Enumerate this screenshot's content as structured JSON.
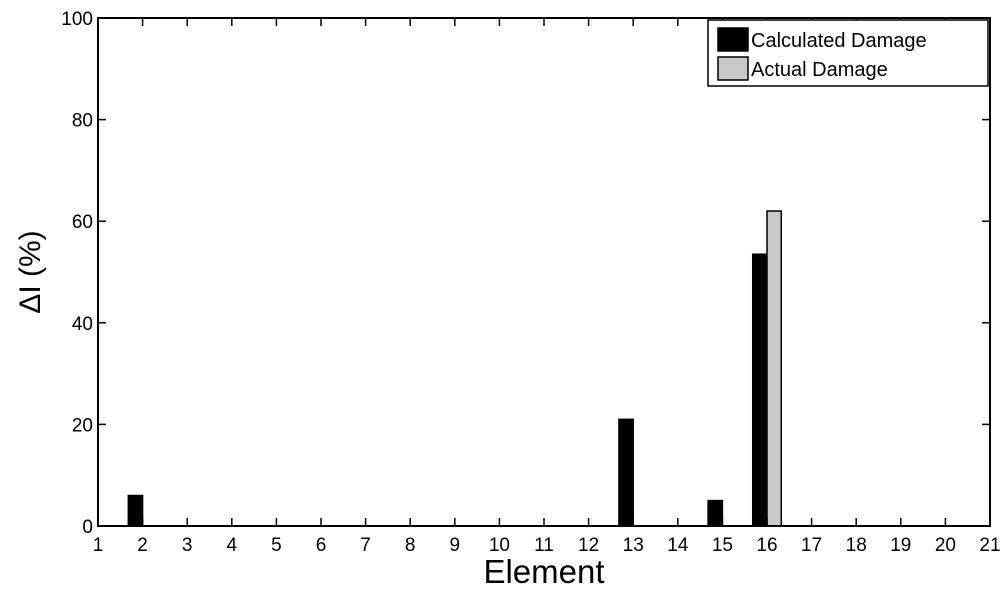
{
  "chart_data": {
    "type": "bar",
    "xlabel": "Element",
    "ylabel": "ΔI (%)",
    "xlim": [
      1,
      21
    ],
    "ylim": [
      0,
      100
    ],
    "x_ticks": [
      "1",
      "2",
      "3",
      "4",
      "5",
      "6",
      "7",
      "8",
      "9",
      "10",
      "11",
      "12",
      "13",
      "14",
      "15",
      "16",
      "17",
      "18",
      "19",
      "20",
      "21"
    ],
    "y_ticks": [
      "0",
      "20",
      "40",
      "60",
      "80",
      "100"
    ],
    "categories": [
      "2",
      "13",
      "15",
      "16"
    ],
    "series": [
      {
        "name": "Calculated Damage",
        "color": "#000000",
        "values": [
          6,
          21,
          5,
          53.5
        ]
      },
      {
        "name": "Actual Damage",
        "color": "#c8c8c8",
        "values": [
          0,
          0,
          0,
          62
        ]
      }
    ],
    "legend_position": "top-right",
    "grid": false
  }
}
